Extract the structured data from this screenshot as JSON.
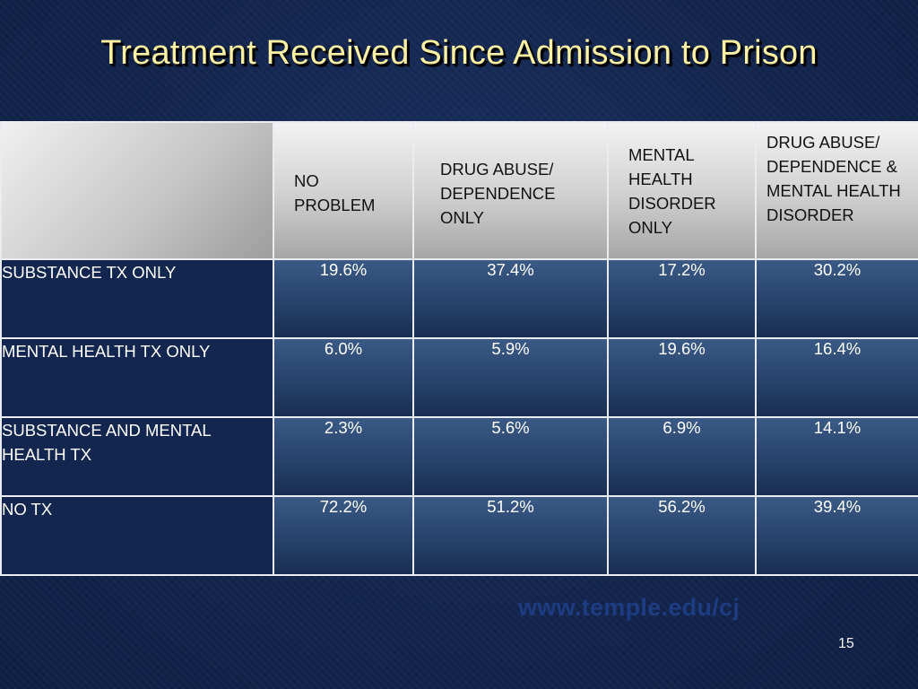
{
  "title": "Treatment Received Since Admission to Prison",
  "table": {
    "header": [
      "",
      "NO PROBLEM",
      "DRUG ABUSE/ DEPENDENCE ONLY",
      "MENTAL HEALTH DISORDER ONLY",
      "DRUG ABUSE/ DEPENDENCE & MENTAL HEALTH DISORDER"
    ],
    "rows": [
      {
        "label": "SUBSTANCE TX ONLY",
        "values": [
          "19.6%",
          "37.4%",
          "17.2%",
          "30.2%"
        ]
      },
      {
        "label": "MENTAL HEALTH TX ONLY",
        "values": [
          "6.0%",
          "5.9%",
          "19.6%",
          "16.4%"
        ]
      },
      {
        "label": "SUBSTANCE AND MENTAL HEALTH TX",
        "values": [
          "2.3%",
          "5.6%",
          "6.9%",
          "14.1%"
        ]
      },
      {
        "label": "NO TX",
        "values": [
          "72.2%",
          "51.2%",
          "56.2%",
          "39.4%"
        ]
      }
    ]
  },
  "footer": {
    "url": "www.temple.edu/cj",
    "page_number": "15"
  },
  "colors": {
    "background": "#13254d",
    "title": "#fbf1a5",
    "cell_fill": "#2a4670",
    "url": "#1e3c82"
  }
}
